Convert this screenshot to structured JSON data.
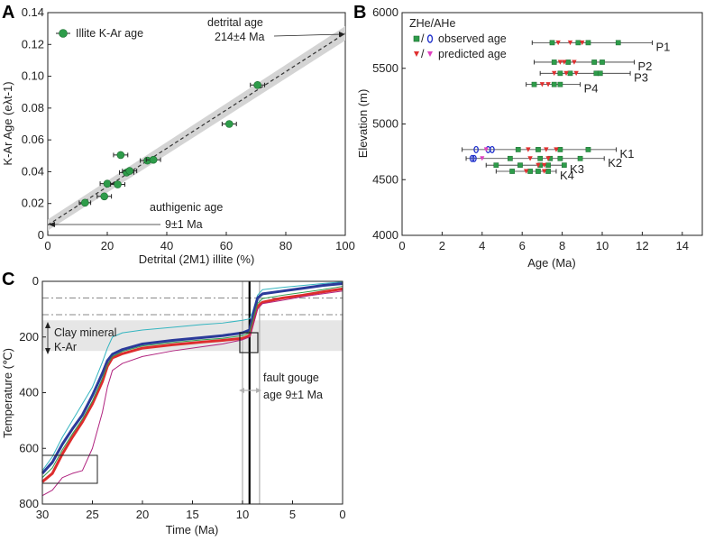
{
  "chart_data": [
    {
      "panel": "A",
      "type": "scatter",
      "xlabel": "Detrital (2M1) illite (%)",
      "ylabel": "K-Ar Age (eλt-1)",
      "xlim": [
        0,
        100
      ],
      "ylim": [
        0,
        0.14
      ],
      "xticks": [
        "0",
        "20",
        "40",
        "60",
        "80",
        "100"
      ],
      "yticks": [
        "0",
        "0.02",
        "0.04",
        "0.06",
        "0.08",
        "0.10",
        "0.12",
        "0.14"
      ],
      "legend": "Illite K-Ar age",
      "series": [
        {
          "name": "Illite K-Ar age",
          "points": [
            {
              "x": 12.5,
              "y": 0.0205,
              "xerr": 1.2
            },
            {
              "x": 19.0,
              "y": 0.0245,
              "xerr": 1.5
            },
            {
              "x": 20.0,
              "y": 0.0325,
              "xerr": 1.5
            },
            {
              "x": 23.5,
              "y": 0.032,
              "xerr": 1.5
            },
            {
              "x": 24.5,
              "y": 0.0505,
              "xerr": 1.5
            },
            {
              "x": 26.5,
              "y": 0.0395,
              "xerr": 1.5
            },
            {
              "x": 27.5,
              "y": 0.0405,
              "xerr": 1.5
            },
            {
              "x": 33.5,
              "y": 0.047,
              "xerr": 1.5
            },
            {
              "x": 35.5,
              "y": 0.0475,
              "xerr": 1.5
            },
            {
              "x": 61.0,
              "y": 0.07,
              "xerr": 1.5
            },
            {
              "x": 70.5,
              "y": 0.0945,
              "xerr": 1.5
            }
          ]
        }
      ],
      "fit_line": {
        "x": [
          0,
          100
        ],
        "y": [
          0.0065,
          0.127
        ]
      },
      "annotations": {
        "detrital_title": "detrital age",
        "detrital_value": "214±4 Ma",
        "authigenic_title": "authigenic age",
        "authigenic_value": "9±1 Ma"
      }
    },
    {
      "panel": "B",
      "type": "scatter",
      "xlabel": "Age (Ma)",
      "ylabel": "Elevation (m)",
      "xlim": [
        0,
        15
      ],
      "ylim": [
        4000,
        6000
      ],
      "xticks": [
        "0",
        "2",
        "4",
        "6",
        "8",
        "10",
        "12",
        "14"
      ],
      "yticks": [
        "4000",
        "4500",
        "5000",
        "5500",
        "6000"
      ],
      "legend_title": "ZHe/AHe",
      "legend_items": [
        "observed age",
        "predicted age"
      ],
      "samples": [
        {
          "label": "P1",
          "elev": 5730,
          "range": [
            6.5,
            12.5
          ],
          "obs": [
            7.5,
            8.8,
            9.3,
            10.8
          ],
          "pred": [
            7.8,
            8.4,
            9.0
          ],
          "ahe": []
        },
        {
          "label": "P2",
          "elev": 5555,
          "range": [
            6.6,
            11.6
          ],
          "obs": [
            7.6,
            8.3,
            9.6,
            10.0
          ],
          "pred": [
            7.9,
            8.1,
            8.6
          ],
          "ahe": []
        },
        {
          "label": "P3",
          "elev": 5455,
          "range": [
            6.9,
            11.4
          ],
          "obs": [
            7.9,
            8.4,
            9.7,
            9.9
          ],
          "pred": [
            7.6,
            8.2,
            8.7
          ],
          "ahe": []
        },
        {
          "label": "P4",
          "elev": 5355,
          "range": [
            6.2,
            8.9
          ],
          "obs": [
            6.6,
            7.6,
            7.9
          ],
          "pred": [
            7.0,
            7.3
          ],
          "ahe": []
        },
        {
          "label": "K1",
          "elev": 4770,
          "range": [
            3.0,
            10.7
          ],
          "obs": [
            5.8,
            6.8,
            7.9,
            9.3
          ],
          "pred": [
            6.3,
            7.2,
            7.7
          ],
          "ahe": [
            3.7,
            4.5,
            4.3
          ]
        },
        {
          "label": "K2",
          "elev": 4690,
          "range": [
            3.2,
            10.1
          ],
          "obs": [
            5.4,
            6.9,
            7.4,
            7.9,
            8.9
          ],
          "pred": [
            6.4,
            7.3
          ],
          "ahe": [
            3.5,
            3.6
          ]
        },
        {
          "label": "K3",
          "elev": 4630,
          "range": [
            4.2,
            8.2
          ],
          "obs": [
            4.7,
            5.9,
            6.9,
            7.3,
            8.1
          ],
          "pred": [
            6.8,
            7.1
          ],
          "ahe": []
        },
        {
          "label": "K4",
          "elev": 4575,
          "range": [
            4.7,
            7.7
          ],
          "obs": [
            5.5,
            6.4,
            6.8,
            7.3
          ],
          "pred": [
            6.2,
            7.1
          ],
          "ahe": []
        }
      ]
    },
    {
      "panel": "C",
      "type": "line",
      "xlabel": "Time (Ma)",
      "ylabel": "Temperature (℃)",
      "xlim": [
        30,
        0
      ],
      "ylim": [
        0,
        800
      ],
      "xticks": [
        "30",
        "25",
        "20",
        "15",
        "10",
        "5",
        "0"
      ],
      "yticks": [
        "0",
        "200",
        "400",
        "600",
        "800"
      ],
      "band_label_1": "Clay mineral",
      "band_label_2": "K-Ar",
      "gouge_label_1": "fault gouge",
      "gouge_label_2": "age  9±1 Ma",
      "band_range": [
        140,
        250
      ],
      "dash_lines": [
        60,
        120
      ],
      "vlines": {
        "solid": 9.3,
        "grey": [
          10.0,
          8.3
        ]
      },
      "series": [
        {
          "name": "upper-envelope",
          "color": "#34b5c0",
          "width": 1,
          "t": [
            30,
            29,
            28,
            27,
            26,
            25,
            24,
            23.5,
            23,
            22,
            20,
            17,
            14,
            12,
            10,
            9.3,
            9,
            8.5,
            8,
            6,
            4,
            2,
            0
          ],
          "T": [
            680,
            630,
            560,
            500,
            440,
            380,
            290,
            240,
            200,
            185,
            175,
            165,
            155,
            150,
            140,
            135,
            110,
            50,
            30,
            22,
            15,
            8,
            2
          ]
        },
        {
          "name": "upper-best",
          "color": "#2b3a9a",
          "width": 3,
          "t": [
            30,
            29,
            28,
            27,
            26,
            25,
            24,
            23.5,
            23,
            22,
            20,
            17,
            14,
            12,
            10,
            9.3,
            9,
            8.5,
            8,
            6,
            4,
            2,
            0
          ],
          "T": [
            690,
            650,
            585,
            530,
            480,
            410,
            330,
            285,
            262,
            245,
            225,
            212,
            202,
            195,
            185,
            175,
            130,
            60,
            45,
            35,
            25,
            15,
            8
          ]
        },
        {
          "name": "lower-best",
          "color": "#dd2d2d",
          "width": 3,
          "t": [
            30,
            29,
            28,
            27,
            26,
            25,
            24,
            23.5,
            23,
            22,
            20,
            17,
            14,
            12,
            10,
            9.3,
            9,
            8.5,
            8,
            6,
            4,
            2,
            0
          ],
          "T": [
            720,
            690,
            620,
            560,
            505,
            440,
            360,
            305,
            275,
            260,
            240,
            228,
            218,
            212,
            205,
            195,
            155,
            90,
            75,
            60,
            50,
            38,
            27
          ]
        },
        {
          "name": "green",
          "color": "#2e9c4a",
          "width": 1,
          "t": [
            30,
            29,
            28,
            27,
            26,
            25,
            24,
            23.5,
            23,
            22,
            20,
            17,
            14,
            12,
            10,
            9.3,
            9,
            8.5,
            8,
            6,
            4,
            2,
            0
          ],
          "T": [
            705,
            670,
            605,
            548,
            495,
            430,
            348,
            300,
            270,
            252,
            232,
            220,
            210,
            205,
            195,
            185,
            145,
            80,
            62,
            50,
            40,
            30,
            18
          ]
        },
        {
          "name": "lower-envelope",
          "color": "#b0237f",
          "width": 1,
          "t": [
            30,
            29,
            28,
            27,
            26,
            25,
            24,
            23.5,
            23,
            22,
            20,
            17,
            14,
            12,
            10,
            9.3,
            9,
            8.5,
            8,
            6,
            4,
            2,
            0
          ],
          "T": [
            770,
            750,
            705,
            690,
            680,
            600,
            470,
            380,
            320,
            295,
            270,
            250,
            235,
            225,
            210,
            200,
            165,
            100,
            80,
            68,
            55,
            45,
            35
          ]
        }
      ]
    }
  ],
  "panel_labels": [
    "A",
    "B",
    "C"
  ],
  "colors": {
    "green": "#2e9c4a",
    "blue": "#2b3a9a",
    "red": "#dd2d2d",
    "cyan": "#34b5c0",
    "magenta": "#b0237f",
    "band": "#e6e6e6"
  }
}
